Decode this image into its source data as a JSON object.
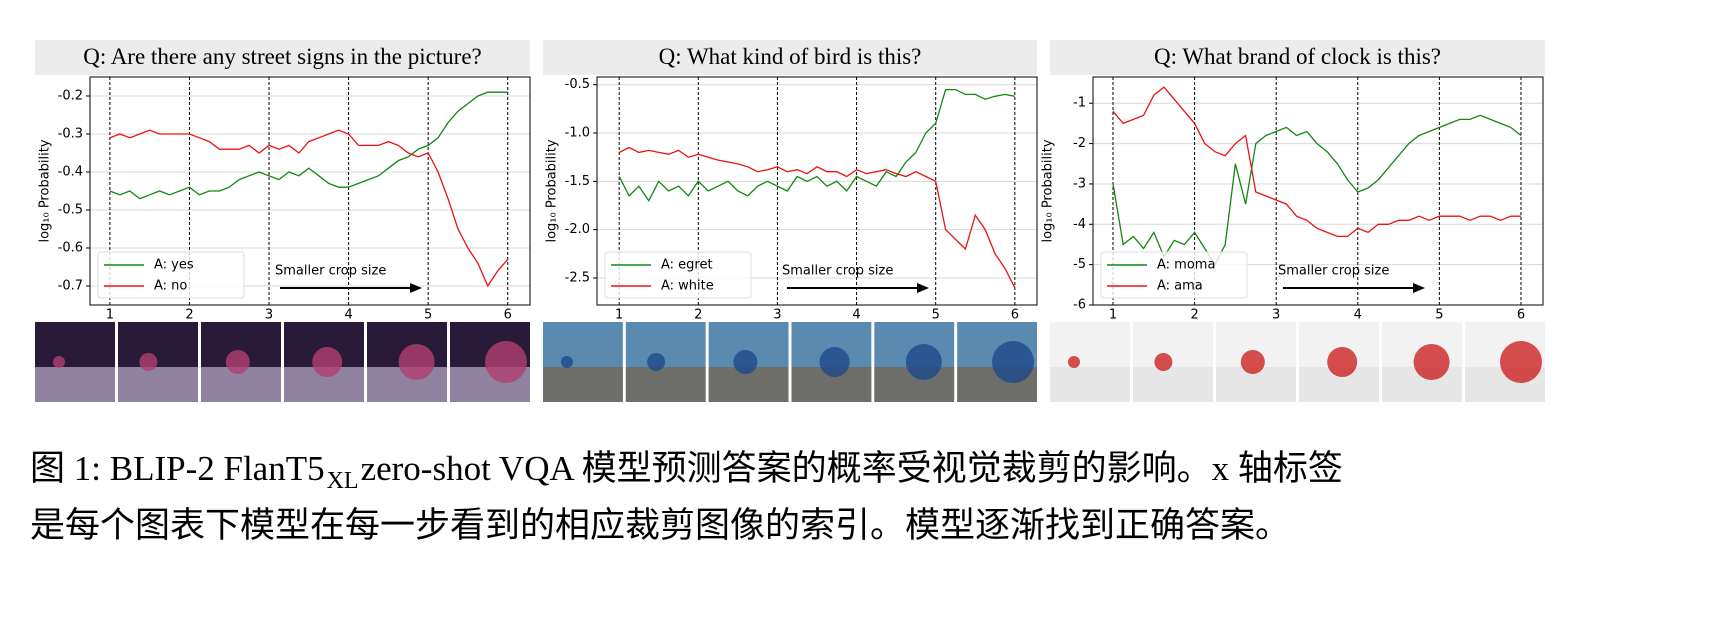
{
  "chart_data": [
    {
      "type": "line",
      "title": "Q: Are there any street signs in the picture?",
      "ylabel": "log₁₀ Probability",
      "annotation": "Smaller crop size",
      "legend": "lower left",
      "grid": true,
      "x": [
        1,
        1.125,
        1.25,
        1.375,
        1.5,
        1.625,
        1.75,
        1.875,
        2,
        2.125,
        2.25,
        2.375,
        2.5,
        2.625,
        2.75,
        2.875,
        3,
        3.125,
        3.25,
        3.375,
        3.5,
        3.625,
        3.75,
        3.875,
        4,
        4.125,
        4.25,
        4.375,
        4.5,
        4.625,
        4.75,
        4.875,
        5,
        5.125,
        5.25,
        5.375,
        5.5,
        5.625,
        5.75,
        5.875,
        6
      ],
      "xlim": [
        0.75,
        6.28
      ],
      "xticks": [
        1,
        2,
        3,
        4,
        5,
        6
      ],
      "ylim": [
        -0.75,
        -0.15
      ],
      "yticks": [
        -0.2,
        -0.3,
        -0.4,
        -0.5,
        -0.6,
        -0.7
      ],
      "series": [
        {
          "name": "A: yes",
          "color": "#118811",
          "values": [
            -0.45,
            -0.46,
            -0.45,
            -0.47,
            -0.46,
            -0.45,
            -0.46,
            -0.45,
            -0.44,
            -0.46,
            -0.45,
            -0.45,
            -0.44,
            -0.42,
            -0.41,
            -0.4,
            -0.41,
            -0.42,
            -0.4,
            -0.41,
            -0.39,
            -0.41,
            -0.43,
            -0.44,
            -0.44,
            -0.43,
            -0.42,
            -0.41,
            -0.39,
            -0.37,
            -0.36,
            -0.34,
            -0.33,
            -0.31,
            -0.27,
            -0.24,
            -0.22,
            -0.2,
            -0.19,
            -0.19,
            -0.19
          ]
        },
        {
          "name": "A: no",
          "color": "#ee1111",
          "values": [
            -0.31,
            -0.3,
            -0.31,
            -0.3,
            -0.29,
            -0.3,
            -0.3,
            -0.3,
            -0.3,
            -0.31,
            -0.32,
            -0.34,
            -0.34,
            -0.34,
            -0.33,
            -0.35,
            -0.33,
            -0.34,
            -0.33,
            -0.35,
            -0.32,
            -0.31,
            -0.3,
            -0.29,
            -0.3,
            -0.33,
            -0.33,
            -0.33,
            -0.32,
            -0.33,
            -0.35,
            -0.36,
            -0.35,
            -0.4,
            -0.47,
            -0.55,
            -0.6,
            -0.64,
            -0.7,
            -0.66,
            -0.63
          ]
        }
      ]
    },
    {
      "type": "line",
      "title": "Q: What kind of bird is this?",
      "ylabel": "log₁₀ Probability",
      "annotation": "Smaller crop size",
      "legend": "lower left",
      "grid": true,
      "x": [
        1,
        1.125,
        1.25,
        1.375,
        1.5,
        1.625,
        1.75,
        1.875,
        2,
        2.125,
        2.25,
        2.375,
        2.5,
        2.625,
        2.75,
        2.875,
        3,
        3.125,
        3.25,
        3.375,
        3.5,
        3.625,
        3.75,
        3.875,
        4,
        4.125,
        4.25,
        4.375,
        4.5,
        4.625,
        4.75,
        4.875,
        5,
        5.125,
        5.25,
        5.375,
        5.5,
        5.625,
        5.75,
        5.875,
        6
      ],
      "xlim": [
        0.72,
        6.28
      ],
      "xticks": [
        1,
        2,
        3,
        4,
        5,
        6
      ],
      "ylim": [
        -2.78,
        -0.42
      ],
      "yticks": [
        -0.5,
        {
          "value": -1.0,
          "label": "-1.0"
        },
        -1.5,
        {
          "value": -2.0,
          "label": "-2.0"
        },
        -2.5
      ],
      "series": [
        {
          "name": "A: egret",
          "color": "#118811",
          "values": [
            -1.45,
            -1.65,
            -1.55,
            -1.7,
            -1.5,
            -1.6,
            -1.55,
            -1.65,
            -1.5,
            -1.6,
            -1.55,
            -1.5,
            -1.6,
            -1.65,
            -1.55,
            -1.5,
            -1.55,
            -1.6,
            -1.45,
            -1.5,
            -1.45,
            -1.55,
            -1.5,
            -1.6,
            -1.45,
            -1.5,
            -1.55,
            -1.4,
            -1.45,
            -1.3,
            -1.2,
            -1.0,
            -0.9,
            -0.55,
            -0.55,
            -0.6,
            -0.6,
            -0.65,
            -0.62,
            -0.6,
            -0.62
          ]
        },
        {
          "name": "A: white",
          "color": "#ee1111",
          "values": [
            -1.2,
            -1.15,
            -1.2,
            -1.18,
            -1.2,
            -1.22,
            -1.18,
            -1.25,
            -1.22,
            -1.25,
            -1.28,
            -1.3,
            -1.32,
            -1.35,
            -1.4,
            -1.38,
            -1.35,
            -1.4,
            -1.38,
            -1.42,
            -1.35,
            -1.4,
            -1.4,
            -1.45,
            -1.38,
            -1.42,
            -1.4,
            -1.38,
            -1.42,
            -1.45,
            -1.4,
            -1.45,
            -1.5,
            -2.0,
            -2.1,
            -2.2,
            -1.85,
            -2.0,
            -2.25,
            -2.4,
            -2.6
          ]
        }
      ]
    },
    {
      "type": "line",
      "title": "Q: What brand of clock is this?",
      "ylabel": "log₁₀ Probability",
      "annotation": "Smaller crop size",
      "legend": "lower left",
      "grid": true,
      "x": [
        1,
        1.125,
        1.25,
        1.375,
        1.5,
        1.625,
        1.75,
        1.875,
        2,
        2.125,
        2.25,
        2.375,
        2.5,
        2.625,
        2.75,
        2.875,
        3,
        3.125,
        3.25,
        3.375,
        3.5,
        3.625,
        3.75,
        3.875,
        4,
        4.125,
        4.25,
        4.375,
        4.5,
        4.625,
        4.75,
        4.875,
        5,
        5.125,
        5.25,
        5.375,
        5.5,
        5.625,
        5.75,
        5.875,
        6
      ],
      "xlim": [
        0.755,
        6.27
      ],
      "xticks": [
        1,
        2,
        3,
        4,
        5,
        6
      ],
      "ylim": [
        -6,
        -0.35
      ],
      "yticks": [
        -1,
        -2,
        -3,
        -4,
        -5,
        -6
      ],
      "series": [
        {
          "name": "A: moma",
          "color": "#118811",
          "values": [
            -3.0,
            -4.5,
            -4.3,
            -4.6,
            -4.2,
            -4.8,
            -4.4,
            -4.5,
            -4.2,
            -4.6,
            -5.0,
            -4.5,
            -2.5,
            -3.5,
            -2.0,
            -1.8,
            -1.7,
            -1.6,
            -1.8,
            -1.7,
            -2.0,
            -2.2,
            -2.5,
            -2.9,
            -3.2,
            -3.1,
            -2.9,
            -2.6,
            -2.3,
            -2.0,
            -1.8,
            -1.7,
            -1.6,
            -1.5,
            -1.4,
            -1.4,
            -1.3,
            -1.4,
            -1.5,
            -1.6,
            -1.8
          ]
        },
        {
          "name": "A: ama",
          "color": "#ee1111",
          "values": [
            -1.2,
            -1.5,
            -1.4,
            -1.3,
            -0.8,
            -0.6,
            -0.9,
            -1.2,
            -1.5,
            -2.0,
            -2.2,
            -2.3,
            -2.0,
            -1.8,
            -3.2,
            -3.3,
            -3.4,
            -3.5,
            -3.8,
            -3.9,
            -4.1,
            -4.2,
            -4.3,
            -4.3,
            -4.1,
            -4.2,
            -4.0,
            -4.0,
            -3.9,
            -3.9,
            -3.8,
            -3.9,
            -3.8,
            -3.8,
            -3.8,
            -3.9,
            -3.8,
            -3.8,
            -3.9,
            -3.8,
            -3.8
          ]
        }
      ]
    }
  ],
  "caption": {
    "prefix": "图 1: BLIP-2 FlanT5",
    "subscript": "XL",
    "line1_rest": " zero-shot VQA 模型预测答案的概率受视觉裁剪的影响。x 轴标签",
    "line2": "是每个图表下模型在每一步看到的相应裁剪图像的索引。模型逐渐找到正确答案。"
  }
}
